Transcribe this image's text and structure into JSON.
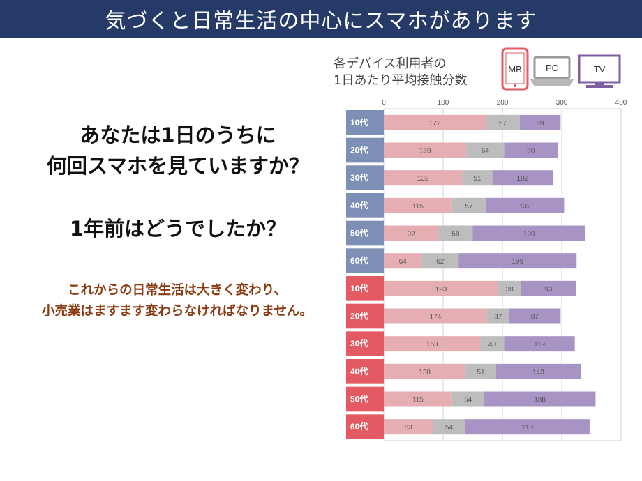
{
  "header": {
    "title": "気づくと日常生活の中心にスマホがあります"
  },
  "left": {
    "question1_line1": "あなたは1日のうちに",
    "question1_line2": "何回スマホを見ていますか？",
    "question2": "1年前はどうでしたか？",
    "note_line1": "これからの日常生活は大きく変わり、",
    "note_line2": "小売業はますます変わらなければなりません。"
  },
  "devices": {
    "mb": {
      "label": "MB",
      "icon": "smartphone-icon"
    },
    "pc": {
      "label": "PC",
      "icon": "laptop-icon"
    },
    "tv": {
      "label": "TV",
      "icon": "tv-icon"
    }
  },
  "colors": {
    "header_bg": "#253a66",
    "mb": "#e4aeb3",
    "pc": "#bdbdbd",
    "tv": "#a894c4",
    "group1_tab": "#7d8fb5",
    "group2_tab": "#e45a63",
    "note_text": "#8a3a10"
  },
  "chart_data": {
    "type": "bar",
    "orientation": "horizontal",
    "stacked": true,
    "title_line1": "各デバイス利用者の",
    "title_line2": "1日あたり平均接触分数",
    "xlim": [
      0,
      400
    ],
    "xticks": [
      "0",
      "100",
      "200",
      "300",
      "400"
    ],
    "categories": [
      "10代",
      "20代",
      "30代",
      "40代",
      "50代",
      "60代",
      "10代",
      "20代",
      "30代",
      "40代",
      "50代",
      "60代"
    ],
    "category_groups": [
      1,
      1,
      1,
      1,
      1,
      1,
      2,
      2,
      2,
      2,
      2,
      2
    ],
    "series": [
      {
        "name": "MB",
        "values": [
          172,
          139,
          132,
          115,
          92,
          64,
          193,
          174,
          163,
          138,
          115,
          83
        ]
      },
      {
        "name": "PC",
        "values": [
          57,
          64,
          51,
          57,
          58,
          62,
          38,
          37,
          40,
          51,
          54,
          54
        ]
      },
      {
        "name": "TV",
        "values": [
          69,
          90,
          102,
          132,
          190,
          199,
          93,
          87,
          119,
          143,
          188,
          210
        ]
      }
    ],
    "grid": true,
    "legend": "top (device icons)"
  }
}
